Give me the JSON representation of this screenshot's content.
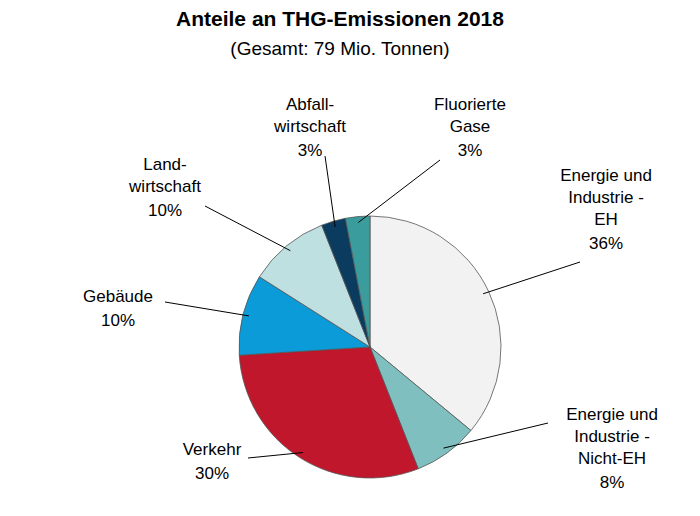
{
  "chart_data": {
    "type": "pie",
    "title": "Anteile an THG-Emissionen 2018",
    "subtitle": "(Gesamt: 79 Mio. Tonnen)",
    "categories": [
      "Energie und\nIndustrie -\nEH",
      "Energie und\nIndustrie -\nNicht-EH",
      "Verkehr",
      "Gebäude",
      "Land-\nwirtschaft",
      "Abfall-\nwirtschaft",
      "Fluorierte\nGase"
    ],
    "values": [
      36,
      8,
      30,
      10,
      10,
      3,
      3
    ],
    "value_labels": [
      "36%",
      "8%",
      "30%",
      "10%",
      "10%",
      "3%",
      "3%"
    ],
    "colors": [
      "#f2f2f2",
      "#7fbfbf",
      "#c0172c",
      "#0b9bd8",
      "#bfe0e1",
      "#0b3b5e",
      "#3a9c9c"
    ],
    "data_labels": true
  }
}
